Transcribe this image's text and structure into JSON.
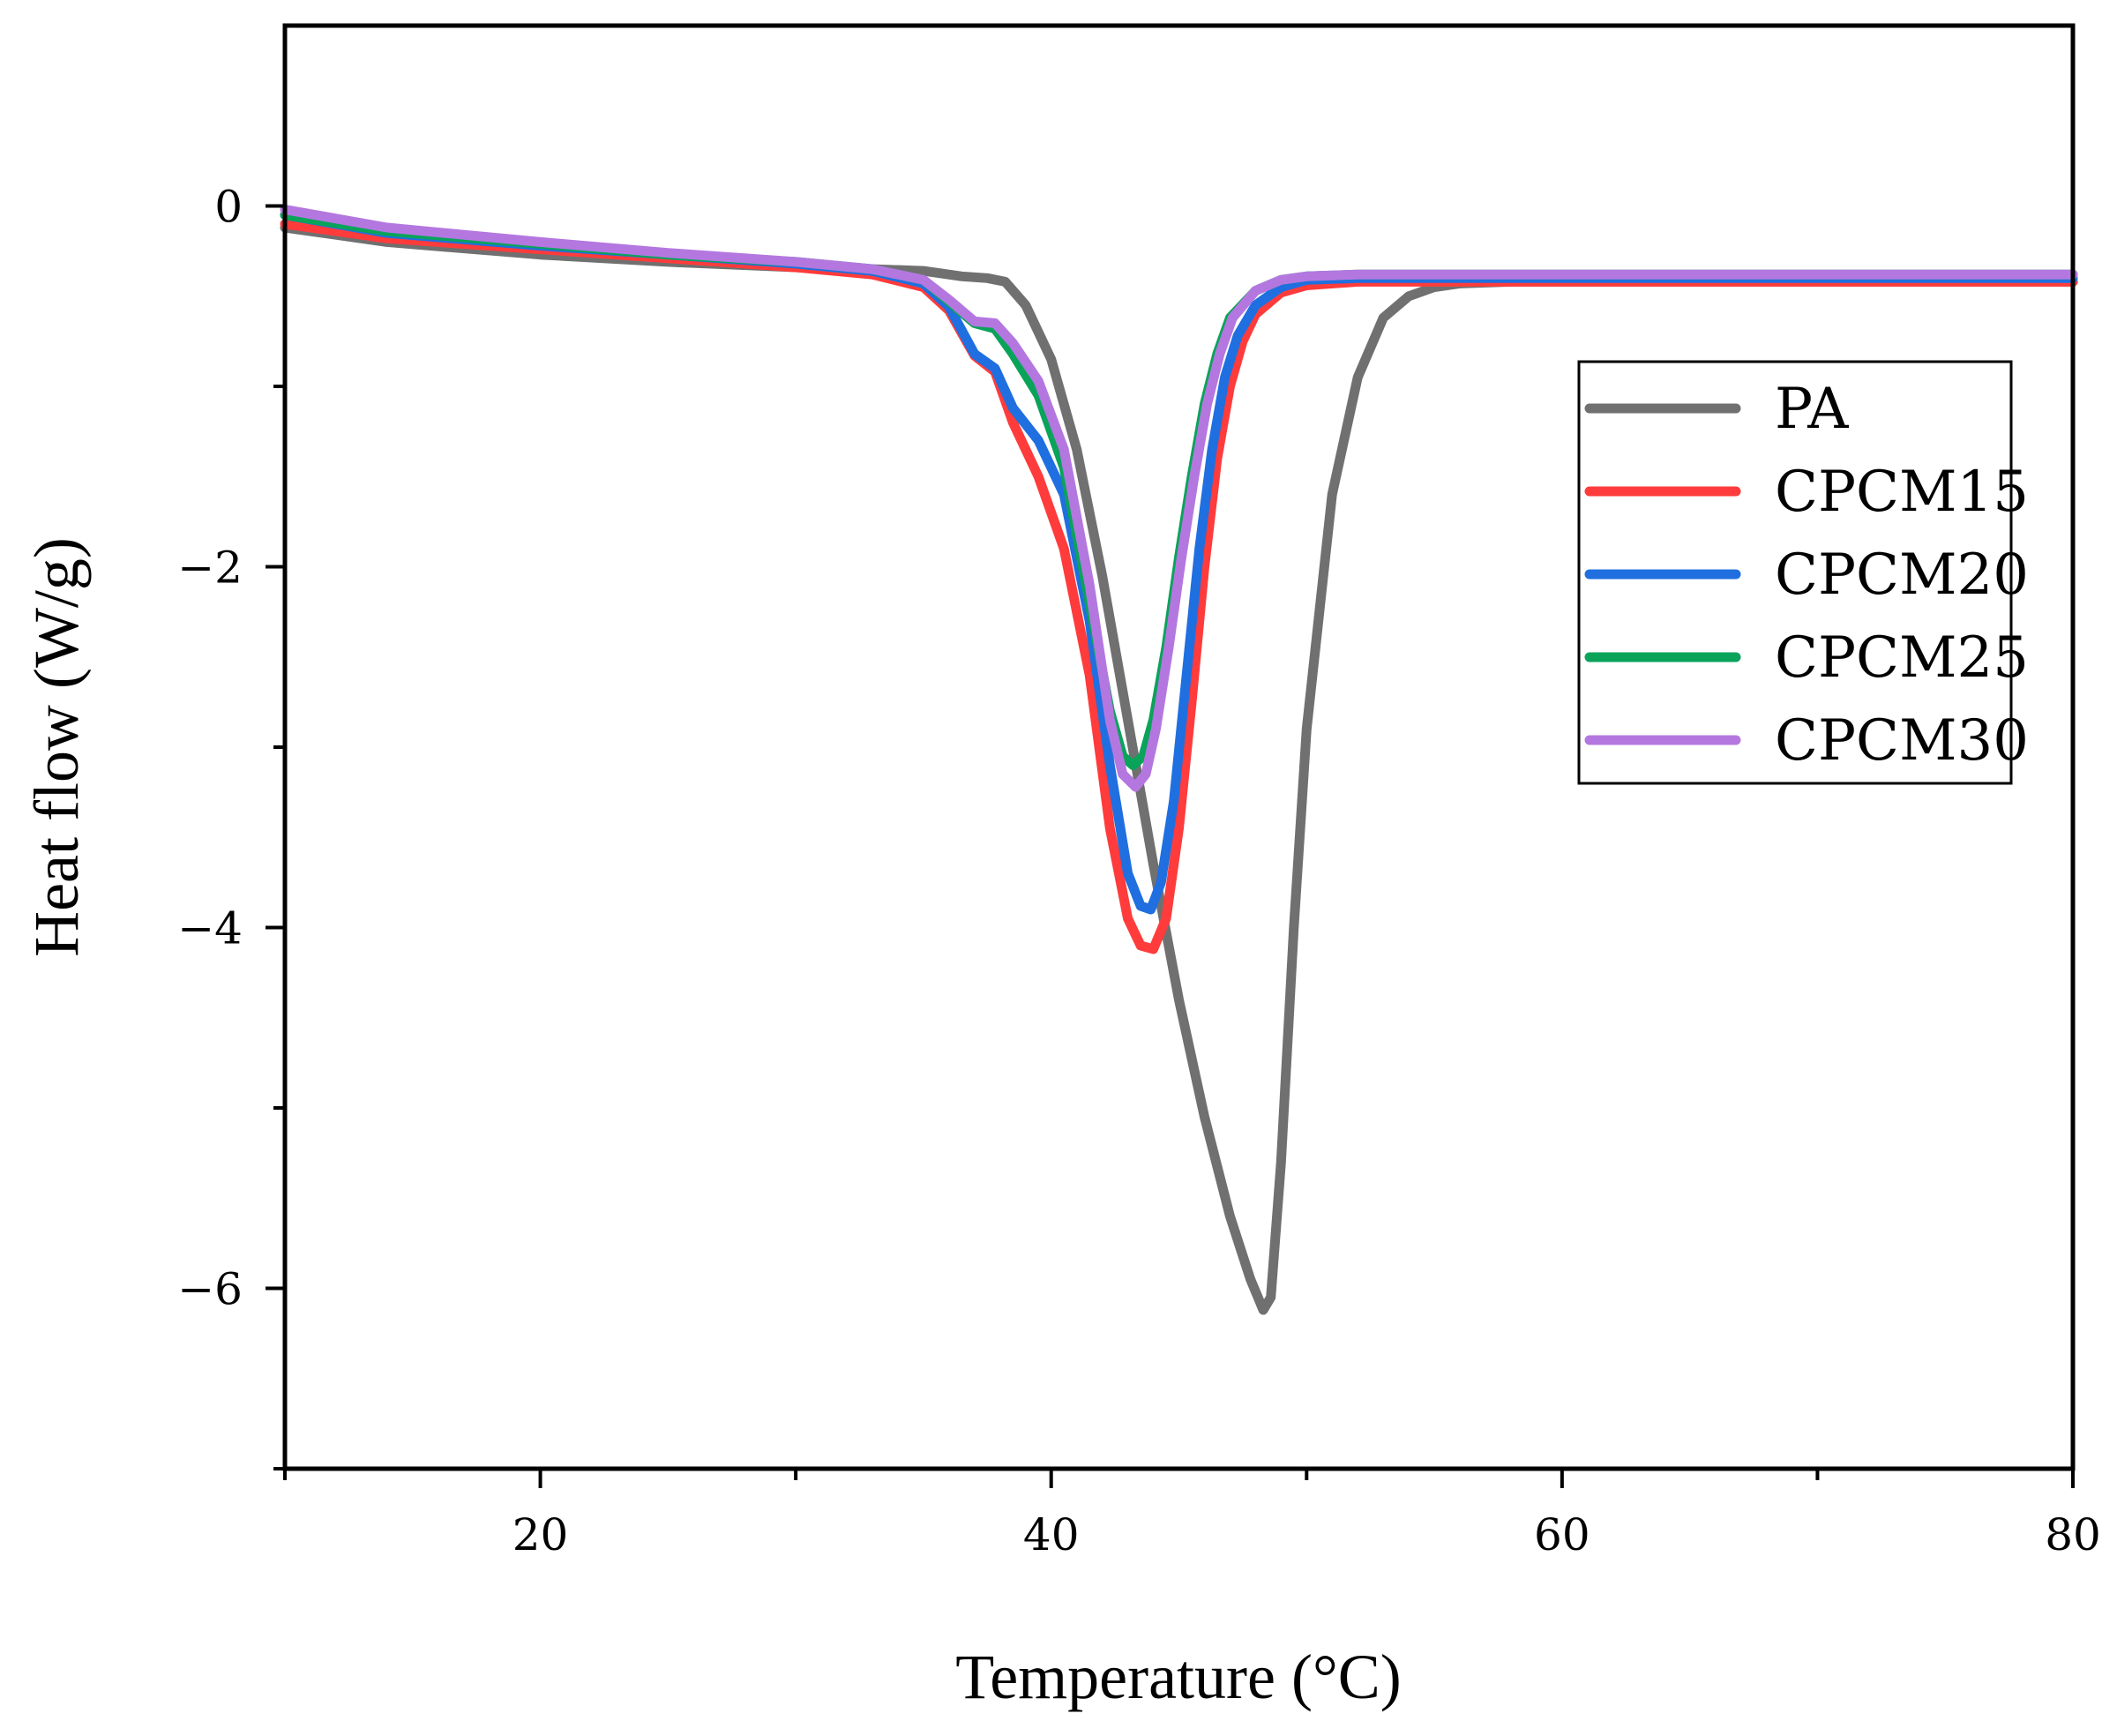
{
  "chart_data": {
    "type": "line",
    "title": "",
    "xlabel": "Temperature (°C)",
    "ylabel": "Heat flow (W/g)",
    "xlim": [
      10,
      80
    ],
    "ylim": [
      -7,
      1
    ],
    "x_major_ticks": [
      20,
      40,
      60,
      80
    ],
    "x_minor_ticks": [
      10,
      30,
      50,
      70
    ],
    "y_major_ticks": [
      0,
      -2,
      -4,
      -6
    ],
    "y_minor_ticks": [
      -1,
      -3,
      -5,
      -7
    ],
    "x_tick_labels": [
      "20",
      "40",
      "60",
      "80"
    ],
    "y_tick_labels": [
      "0",
      "−2",
      "−4",
      "−6"
    ],
    "grid": false,
    "legend_position": "upper-right",
    "series": [
      {
        "name": "PA",
        "color": "#707070",
        "x": [
          10,
          14,
          20,
          25,
          30,
          33,
          35,
          36.5,
          37.5,
          38.2,
          39,
          40,
          41,
          42,
          43,
          44,
          45,
          46,
          47,
          47.8,
          48.3,
          48.6,
          49,
          49.5,
          50,
          51,
          52,
          53,
          54,
          55,
          56,
          58,
          60,
          70,
          80
        ],
        "y": [
          -0.12,
          -0.2,
          -0.27,
          -0.31,
          -0.34,
          -0.35,
          -0.36,
          -0.39,
          -0.4,
          -0.42,
          -0.55,
          -0.85,
          -1.35,
          -2.05,
          -2.85,
          -3.65,
          -4.4,
          -5.05,
          -5.6,
          -5.95,
          -6.12,
          -6.05,
          -5.3,
          -4.0,
          -2.9,
          -1.6,
          -0.95,
          -0.62,
          -0.5,
          -0.45,
          -0.43,
          -0.42,
          -0.42,
          -0.42,
          -0.42
        ]
      },
      {
        "name": "CPCM15",
        "color": "#ff3b3b",
        "x": [
          10,
          14,
          20,
          25,
          30,
          33,
          35,
          36,
          37,
          37.8,
          38.5,
          39.5,
          40.5,
          41.5,
          42.3,
          43,
          43.5,
          44,
          44.5,
          45,
          45.5,
          46,
          46.5,
          47,
          47.5,
          48,
          49,
          50,
          52,
          55,
          60,
          70,
          80
        ],
        "y": [
          -0.1,
          -0.18,
          -0.24,
          -0.29,
          -0.34,
          -0.38,
          -0.45,
          -0.58,
          -0.83,
          -0.92,
          -1.2,
          -1.5,
          -1.9,
          -2.6,
          -3.45,
          -3.95,
          -4.1,
          -4.12,
          -3.95,
          -3.45,
          -2.75,
          -2.0,
          -1.4,
          -1.0,
          -0.75,
          -0.6,
          -0.48,
          -0.44,
          -0.42,
          -0.42,
          -0.42,
          -0.42,
          -0.42
        ]
      },
      {
        "name": "CPCM20",
        "color": "#1f6fe0",
        "x": [
          10,
          14,
          20,
          25,
          30,
          33,
          35,
          36,
          37,
          37.8,
          38.5,
          39.5,
          40.5,
          41.5,
          42.3,
          43,
          43.5,
          43.9,
          44.3,
          44.8,
          45.3,
          45.8,
          46.3,
          46.8,
          47.3,
          48,
          49,
          50,
          52,
          55,
          60,
          70,
          80
        ],
        "y": [
          -0.05,
          -0.15,
          -0.22,
          -0.27,
          -0.32,
          -0.36,
          -0.43,
          -0.56,
          -0.82,
          -0.9,
          -1.12,
          -1.3,
          -1.6,
          -2.3,
          -3.1,
          -3.7,
          -3.88,
          -3.9,
          -3.75,
          -3.3,
          -2.6,
          -1.9,
          -1.35,
          -0.95,
          -0.72,
          -0.55,
          -0.45,
          -0.41,
          -0.4,
          -0.4,
          -0.4,
          -0.4,
          -0.4
        ]
      },
      {
        "name": "CPCM25",
        "color": "#0aa35a",
        "x": [
          10,
          14,
          20,
          25,
          30,
          33,
          35,
          36,
          37,
          37.8,
          38.5,
          39.5,
          40.5,
          41.5,
          42.3,
          42.8,
          43.2,
          43.6,
          44,
          44.5,
          45,
          45.5,
          46,
          46.5,
          47,
          48,
          49,
          50,
          52,
          55,
          60,
          70,
          80
        ],
        "y": [
          -0.05,
          -0.14,
          -0.21,
          -0.27,
          -0.31,
          -0.35,
          -0.41,
          -0.53,
          -0.65,
          -0.68,
          -0.82,
          -1.05,
          -1.45,
          -2.2,
          -2.8,
          -3.05,
          -3.1,
          -3.05,
          -2.85,
          -2.45,
          -1.95,
          -1.5,
          -1.1,
          -0.82,
          -0.62,
          -0.47,
          -0.41,
          -0.39,
          -0.38,
          -0.38,
          -0.38,
          -0.38,
          -0.38
        ]
      },
      {
        "name": "CPCM30",
        "color": "#b477e0",
        "x": [
          10,
          14,
          20,
          25,
          30,
          33,
          35,
          36,
          37,
          37.8,
          38.5,
          39.5,
          40.5,
          41.5,
          42.3,
          42.8,
          43.3,
          43.7,
          44.1,
          44.6,
          45.1,
          45.6,
          46.1,
          46.6,
          47.1,
          48,
          49,
          50,
          52,
          55,
          60,
          70,
          80
        ],
        "y": [
          -0.02,
          -0.12,
          -0.2,
          -0.26,
          -0.31,
          -0.35,
          -0.41,
          -0.52,
          -0.64,
          -0.65,
          -0.76,
          -0.97,
          -1.35,
          -2.1,
          -2.85,
          -3.15,
          -3.22,
          -3.15,
          -2.9,
          -2.45,
          -1.95,
          -1.5,
          -1.1,
          -0.82,
          -0.62,
          -0.47,
          -0.41,
          -0.39,
          -0.38,
          -0.38,
          -0.38,
          -0.38,
          -0.38
        ]
      }
    ]
  }
}
